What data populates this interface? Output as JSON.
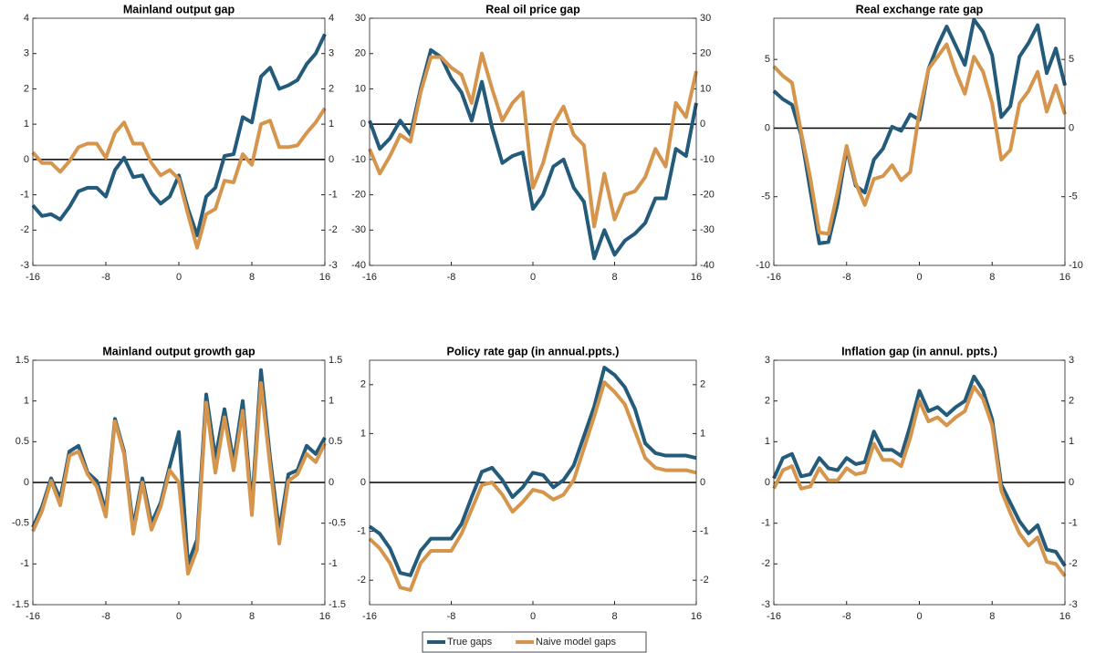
{
  "chart_data": [
    {
      "type": "line",
      "title": "Mainland output gap",
      "x": [
        -16,
        -15,
        -14,
        -13,
        -12,
        -11,
        -10,
        -9,
        -8,
        -7,
        -6,
        -5,
        -4,
        -3,
        -2,
        -1,
        0,
        1,
        2,
        3,
        4,
        5,
        6,
        7,
        8,
        9,
        10,
        11,
        12,
        13,
        14,
        15,
        16
      ],
      "xlim": [
        -16,
        16
      ],
      "xticks": [
        -16,
        -8,
        0,
        8,
        16
      ],
      "ylim": [
        -3,
        4
      ],
      "yticks": [
        -3,
        -2,
        -1,
        0,
        1,
        2,
        3,
        4
      ],
      "series": [
        {
          "name": "True gaps",
          "color": "#245b7b",
          "values": [
            -1.3,
            -1.6,
            -1.55,
            -1.7,
            -1.35,
            -0.9,
            -0.8,
            -0.8,
            -1.05,
            -0.3,
            0.05,
            -0.5,
            -0.45,
            -0.95,
            -1.25,
            -1.05,
            -0.45,
            -1.4,
            -2.15,
            -1.05,
            -0.8,
            0.1,
            0.15,
            1.2,
            1.05,
            2.35,
            2.6,
            2.0,
            2.1,
            2.25,
            2.7,
            3.0,
            3.55
          ]
        },
        {
          "name": "Naive model gaps",
          "color": "#d6954c",
          "values": [
            0.2,
            -0.1,
            -0.1,
            -0.35,
            -0.05,
            0.35,
            0.45,
            0.45,
            0.05,
            0.75,
            1.05,
            0.45,
            0.45,
            -0.1,
            -0.45,
            -0.3,
            -0.55,
            -1.55,
            -2.5,
            -1.55,
            -1.4,
            -0.6,
            -0.65,
            0.15,
            -0.15,
            1.0,
            1.1,
            0.35,
            0.35,
            0.4,
            0.75,
            1.05,
            1.45
          ]
        }
      ]
    },
    {
      "type": "line",
      "title": "Real oil price gap",
      "x": [
        -16,
        -15,
        -14,
        -13,
        -12,
        -11,
        -10,
        -9,
        -8,
        -7,
        -6,
        -5,
        -4,
        -3,
        -2,
        -1,
        0,
        1,
        2,
        3,
        4,
        5,
        6,
        7,
        8,
        9,
        10,
        11,
        12,
        13,
        14,
        15,
        16
      ],
      "xlim": [
        -16,
        16
      ],
      "xticks": [
        -16,
        -8,
        0,
        8,
        16
      ],
      "ylim": [
        -40,
        30
      ],
      "yticks": [
        -40,
        -30,
        -20,
        -10,
        0,
        10,
        20,
        30
      ],
      "series": [
        {
          "color": "#245b7b",
          "values": [
            1,
            -7,
            -4,
            1,
            -3,
            10,
            21,
            19,
            13,
            9,
            1,
            12,
            -1,
            -11,
            -9,
            -8,
            -24,
            -20,
            -12,
            -10,
            -18,
            -22,
            -38,
            -30,
            -37,
            -33,
            -31,
            -28,
            -21,
            -21,
            -7,
            -9,
            6
          ]
        },
        {
          "color": "#d6954c",
          "values": [
            -7,
            -14,
            -9,
            -3,
            -5,
            9,
            19,
            19,
            16,
            14,
            6,
            20,
            10,
            1,
            6,
            9,
            -18,
            -11,
            0,
            5,
            -3,
            -6,
            -29,
            -14,
            -27,
            -20,
            -19,
            -15,
            -7,
            -12,
            6,
            2,
            15
          ]
        }
      ]
    },
    {
      "type": "line",
      "title": "Real exchange rate gap",
      "x": [
        -16,
        -15,
        -14,
        -13,
        -12,
        -11,
        -10,
        -9,
        -8,
        -7,
        -6,
        -5,
        -4,
        -3,
        -2,
        -1,
        0,
        1,
        2,
        3,
        4,
        5,
        6,
        7,
        8,
        9,
        10,
        11,
        12,
        13,
        14,
        15,
        16
      ],
      "xlim": [
        -16,
        16
      ],
      "xticks": [
        -16,
        -8,
        0,
        8,
        16
      ],
      "ylim": [
        -10,
        8
      ],
      "yticks": [
        -10,
        -5,
        0,
        5
      ],
      "series": [
        {
          "color": "#245b7b",
          "values": [
            2.7,
            2.1,
            1.7,
            -0.5,
            -4.5,
            -8.4,
            -8.3,
            -5.5,
            -1.5,
            -4.2,
            -4.7,
            -2.3,
            -1.5,
            0.1,
            -0.2,
            1.0,
            0.6,
            4.3,
            6.0,
            7.4,
            6.0,
            4.6,
            7.9,
            7.0,
            5.3,
            0.8,
            1.6,
            5.2,
            6.2,
            7.5,
            4.0,
            5.8,
            3.1
          ]
        },
        {
          "color": "#d6954c",
          "values": [
            4.5,
            3.8,
            3.3,
            -0.3,
            -3.6,
            -7.6,
            -7.7,
            -4.7,
            -1.3,
            -4.0,
            -5.6,
            -3.7,
            -3.5,
            -2.7,
            -3.8,
            -3.2,
            1.2,
            4.3,
            5.2,
            6.1,
            4.1,
            2.5,
            5.2,
            4.1,
            1.8,
            -2.3,
            -1.6,
            1.8,
            2.7,
            4.1,
            1.2,
            3.1,
            1.0
          ]
        }
      ]
    },
    {
      "type": "line",
      "title": "Mainland output growth gap",
      "x": [
        -16,
        -15,
        -14,
        -13,
        -12,
        -11,
        -10,
        -9,
        -8,
        -7,
        -6,
        -5,
        -4,
        -3,
        -2,
        -1,
        0,
        1,
        2,
        3,
        4,
        5,
        6,
        7,
        8,
        9,
        10,
        11,
        12,
        13,
        14,
        15,
        16
      ],
      "xlim": [
        -16,
        16
      ],
      "xticks": [
        -16,
        -8,
        0,
        8,
        16
      ],
      "ylim": [
        -1.5,
        1.5
      ],
      "yticks": [
        -1.5,
        -1,
        -0.5,
        0,
        0.5,
        1,
        1.5
      ],
      "series": [
        {
          "color": "#245b7b",
          "values": [
            -0.55,
            -0.3,
            0.05,
            -0.2,
            0.38,
            0.45,
            0.12,
            0.02,
            -0.35,
            0.78,
            0.38,
            -0.55,
            0.05,
            -0.5,
            -0.25,
            0.2,
            0.62,
            -1.0,
            -0.7,
            1.08,
            0.3,
            0.9,
            0.25,
            1.0,
            -0.3,
            1.38,
            0.3,
            -0.6,
            0.1,
            0.15,
            0.45,
            0.35,
            0.55
          ]
        },
        {
          "color": "#d6954c",
          "values": [
            -0.6,
            -0.35,
            0.02,
            -0.28,
            0.33,
            0.38,
            0.1,
            -0.05,
            -0.42,
            0.75,
            0.35,
            -0.63,
            0.0,
            -0.58,
            -0.3,
            0.15,
            0.0,
            -1.12,
            -0.82,
            0.98,
            0.12,
            0.8,
            0.15,
            0.88,
            -0.4,
            1.22,
            0.2,
            -0.75,
            0.02,
            0.1,
            0.35,
            0.25,
            0.48
          ]
        }
      ]
    },
    {
      "type": "line",
      "title": "Policy rate gap (in annual.ppts.)",
      "x": [
        -16,
        -15,
        -14,
        -13,
        -12,
        -11,
        -10,
        -9,
        -8,
        -7,
        -6,
        -5,
        -4,
        -3,
        -2,
        -1,
        0,
        1,
        2,
        3,
        4,
        5,
        6,
        7,
        8,
        9,
        10,
        11,
        12,
        13,
        14,
        15,
        16
      ],
      "xlim": [
        -16,
        16
      ],
      "xticks": [
        -16,
        -8,
        0,
        8,
        16
      ],
      "ylim": [
        -2.5,
        2.5
      ],
      "yticks": [
        -2,
        -1,
        0,
        1,
        2
      ],
      "series": [
        {
          "color": "#245b7b",
          "values": [
            -0.9,
            -1.05,
            -1.35,
            -1.85,
            -1.9,
            -1.4,
            -1.15,
            -1.15,
            -1.15,
            -0.85,
            -0.3,
            0.22,
            0.3,
            0.05,
            -0.3,
            -0.1,
            0.2,
            0.15,
            -0.1,
            0.05,
            0.35,
            0.95,
            1.55,
            2.35,
            2.2,
            1.95,
            1.5,
            0.8,
            0.6,
            0.55,
            0.55,
            0.55,
            0.5
          ]
        },
        {
          "color": "#d6954c",
          "values": [
            -1.15,
            -1.35,
            -1.65,
            -2.15,
            -2.2,
            -1.65,
            -1.4,
            -1.4,
            -1.4,
            -1.05,
            -0.55,
            -0.05,
            0.0,
            -0.25,
            -0.6,
            -0.4,
            -0.15,
            -0.2,
            -0.35,
            -0.25,
            0.05,
            0.7,
            1.35,
            2.05,
            1.85,
            1.6,
            1.05,
            0.5,
            0.3,
            0.25,
            0.25,
            0.25,
            0.2
          ]
        }
      ]
    },
    {
      "type": "line",
      "title": "Inflation gap (in annul. ppts.)",
      "x": [
        -16,
        -15,
        -14,
        -13,
        -12,
        -11,
        -10,
        -9,
        -8,
        -7,
        -6,
        -5,
        -4,
        -3,
        -2,
        -1,
        0,
        1,
        2,
        3,
        4,
        5,
        6,
        7,
        8,
        9,
        10,
        11,
        12,
        13,
        14,
        15,
        16
      ],
      "xlim": [
        -16,
        16
      ],
      "xticks": [
        -16,
        -8,
        0,
        8,
        16
      ],
      "ylim": [
        -3,
        3
      ],
      "yticks": [
        -3,
        -2,
        -1,
        0,
        1,
        2,
        3
      ],
      "series": [
        {
          "color": "#245b7b",
          "values": [
            0.1,
            0.6,
            0.7,
            0.15,
            0.2,
            0.6,
            0.35,
            0.3,
            0.6,
            0.45,
            0.5,
            1.25,
            0.8,
            0.8,
            0.65,
            1.4,
            2.25,
            1.75,
            1.85,
            1.65,
            1.85,
            2.0,
            2.6,
            2.25,
            1.55,
            -0.05,
            -0.5,
            -0.95,
            -1.25,
            -1.05,
            -1.65,
            -1.7,
            -2.05
          ]
        },
        {
          "color": "#d6954c",
          "values": [
            -0.15,
            0.3,
            0.4,
            -0.15,
            -0.1,
            0.35,
            0.05,
            0.05,
            0.35,
            0.2,
            0.25,
            0.95,
            0.55,
            0.55,
            0.4,
            1.1,
            2.0,
            1.5,
            1.6,
            1.4,
            1.6,
            1.75,
            2.35,
            2.05,
            1.4,
            -0.2,
            -0.75,
            -1.25,
            -1.55,
            -1.35,
            -1.95,
            -2.0,
            -2.3
          ]
        }
      ]
    }
  ]
}
